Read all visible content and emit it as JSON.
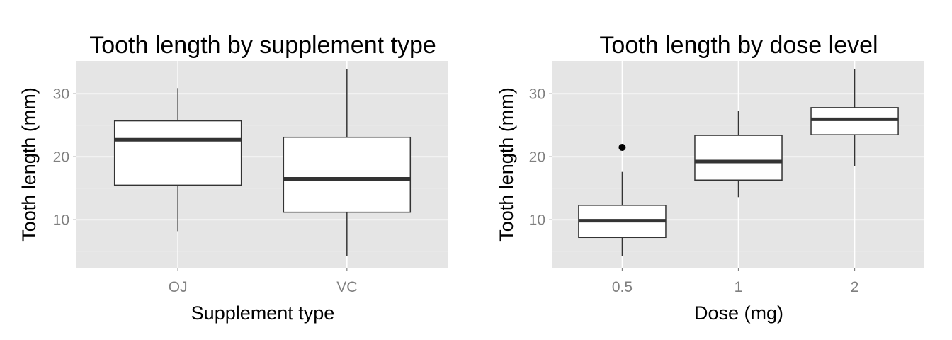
{
  "chart_data": [
    {
      "type": "box",
      "title": "Tooth length by supplement type",
      "xlabel": "Supplement type",
      "ylabel": "Tooth length (mm)",
      "ylim": [
        2.4,
        35.2
      ],
      "yticks": [
        10,
        20,
        30
      ],
      "yminor": [
        5,
        15,
        25,
        35
      ],
      "grid": true,
      "categories": [
        "OJ",
        "VC"
      ],
      "boxes": [
        {
          "category": "OJ",
          "min": 8.2,
          "q1": 15.5,
          "median": 22.7,
          "q3": 25.7,
          "max": 30.9,
          "outliers": []
        },
        {
          "category": "VC",
          "min": 4.2,
          "q1": 11.2,
          "median": 16.5,
          "q3": 23.1,
          "max": 33.9,
          "outliers": []
        }
      ]
    },
    {
      "type": "box",
      "title": "Tooth length by dose level",
      "xlabel": "Dose (mg)",
      "ylabel": "Tooth length (mm)",
      "ylim": [
        2.4,
        35.2
      ],
      "yticks": [
        10,
        20,
        30
      ],
      "yminor": [
        5,
        15,
        25,
        35
      ],
      "grid": true,
      "categories": [
        "0.5",
        "1",
        "2"
      ],
      "boxes": [
        {
          "category": "0.5",
          "min": 4.2,
          "q1": 7.2,
          "median": 9.85,
          "q3": 12.3,
          "max": 17.6,
          "outliers": [
            21.5
          ]
        },
        {
          "category": "1",
          "min": 13.6,
          "q1": 16.3,
          "median": 19.25,
          "q3": 23.4,
          "max": 27.3,
          "outliers": []
        },
        {
          "category": "2",
          "min": 18.5,
          "q1": 23.5,
          "median": 25.95,
          "q3": 27.8,
          "max": 33.9,
          "outliers": []
        }
      ]
    }
  ]
}
